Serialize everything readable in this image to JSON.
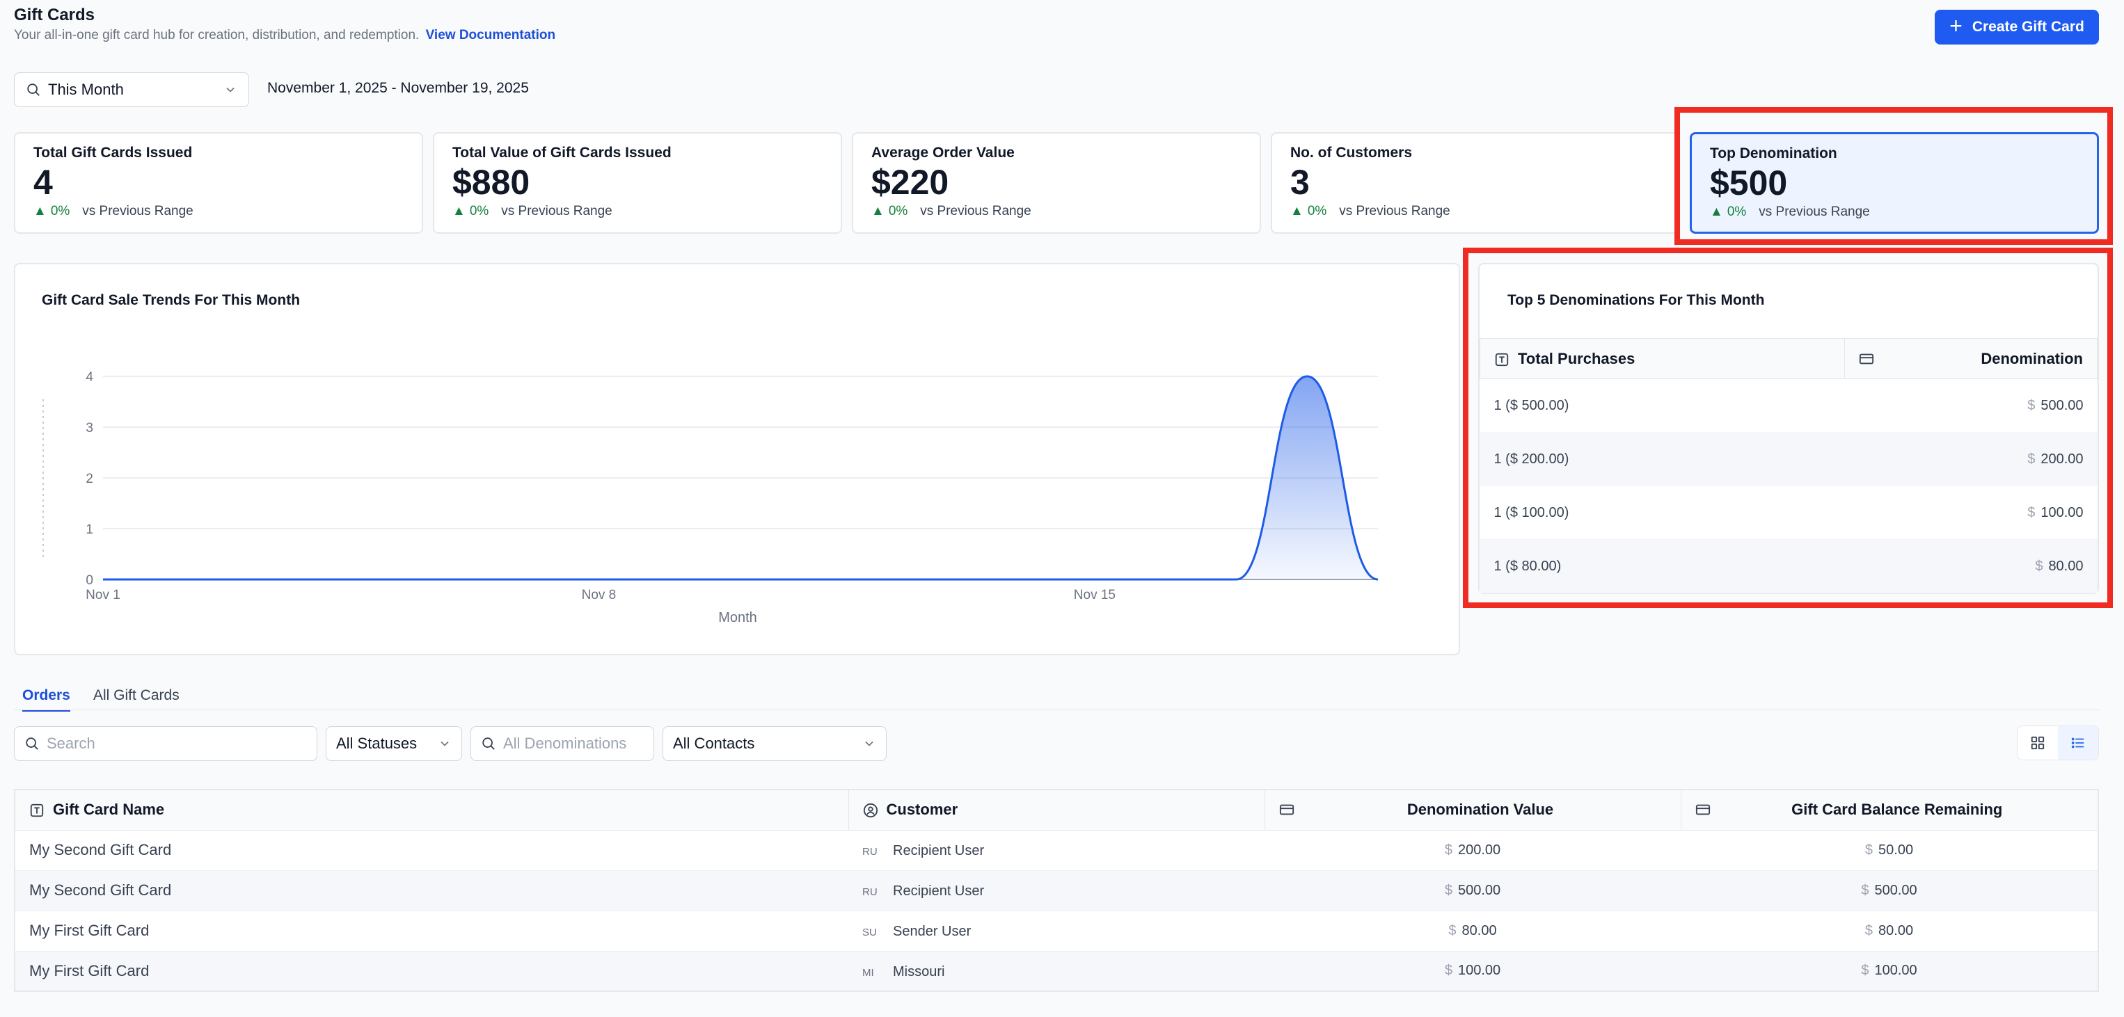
{
  "header": {
    "title": "Gift Cards",
    "subtitle": "Your all-in-one gift card hub for creation, distribution, and redemption.",
    "doc_link": "View Documentation",
    "create_button": "Create Gift Card"
  },
  "filters": {
    "range": "This Month",
    "date_range": "November 1, 2025 - November 19, 2025"
  },
  "stats": [
    {
      "title": "Total Gift Cards Issued",
      "value": "4",
      "change": "0%",
      "compare": "vs Previous Range"
    },
    {
      "title": "Total Value of Gift Cards Issued",
      "value": "$880",
      "change": "0%",
      "compare": "vs Previous Range"
    },
    {
      "title": "Average Order Value",
      "value": "$220",
      "change": "0%",
      "compare": "vs Previous Range"
    },
    {
      "title": "No. of Customers",
      "value": "3",
      "change": "0%",
      "compare": "vs Previous Range"
    },
    {
      "title": "Top Denomination",
      "value": "$500",
      "change": "0%",
      "compare": "vs Previous Range"
    }
  ],
  "chart": {
    "title": "Gift Card Sale Trends For This Month",
    "xlabel": "Month"
  },
  "chart_data": {
    "type": "area",
    "title": "Gift Card Sale Trends For This Month",
    "xlabel": "Month",
    "ylabel": "",
    "x": [
      "Nov 1",
      "Nov 2",
      "Nov 3",
      "Nov 4",
      "Nov 5",
      "Nov 6",
      "Nov 7",
      "Nov 8",
      "Nov 9",
      "Nov 10",
      "Nov 11",
      "Nov 12",
      "Nov 13",
      "Nov 14",
      "Nov 15",
      "Nov 16",
      "Nov 17",
      "Nov 18",
      "Nov 19"
    ],
    "values": [
      0,
      0,
      0,
      0,
      0,
      0,
      0,
      0,
      0,
      0,
      0,
      0,
      0,
      0,
      0,
      0,
      0,
      4,
      0
    ],
    "x_tick_labels": [
      "Nov 1",
      "Nov 8",
      "Nov 15"
    ],
    "y_ticks": [
      0,
      1,
      2,
      3,
      4
    ],
    "ylim": [
      0,
      4
    ],
    "grid": true,
    "color": "#1d5be8"
  },
  "denominations": {
    "title": "Top 5 Denominations For This Month",
    "columns": [
      "Total Purchases",
      "Denomination"
    ],
    "currency": "$",
    "rows": [
      {
        "purchases": "1 ($ 500.00)",
        "amount": "500.00"
      },
      {
        "purchases": "1 ($ 200.00)",
        "amount": "200.00"
      },
      {
        "purchases": "1 ($ 100.00)",
        "amount": "100.00"
      },
      {
        "purchases": "1 ($ 80.00)",
        "amount": "80.00"
      }
    ]
  },
  "tabs": [
    "Orders",
    "All Gift Cards"
  ],
  "order_filters": {
    "search_placeholder": "Search",
    "status": "All Statuses",
    "denomination_placeholder": "All Denominations",
    "contacts": "All Contacts"
  },
  "orders": {
    "columns": [
      "Gift Card Name",
      "Customer",
      "Denomination Value",
      "Gift Card Balance Remaining"
    ],
    "currency": "$",
    "rows": [
      {
        "name": "My Second Gift Card",
        "initials": "RU",
        "customer": "Recipient User",
        "value": "200.00",
        "balance": "50.00"
      },
      {
        "name": "My Second Gift Card",
        "initials": "RU",
        "customer": "Recipient User",
        "value": "500.00",
        "balance": "500.00"
      },
      {
        "name": "My First Gift Card",
        "initials": "SU",
        "customer": "Sender User",
        "value": "80.00",
        "balance": "80.00"
      },
      {
        "name": "My First Gift Card",
        "initials": "MI",
        "customer": "Missouri",
        "value": "100.00",
        "balance": "100.00"
      }
    ]
  },
  "colors": {
    "accent": "#1f5bf0",
    "positive": "#15803d",
    "highlight": "#ef2b22"
  }
}
